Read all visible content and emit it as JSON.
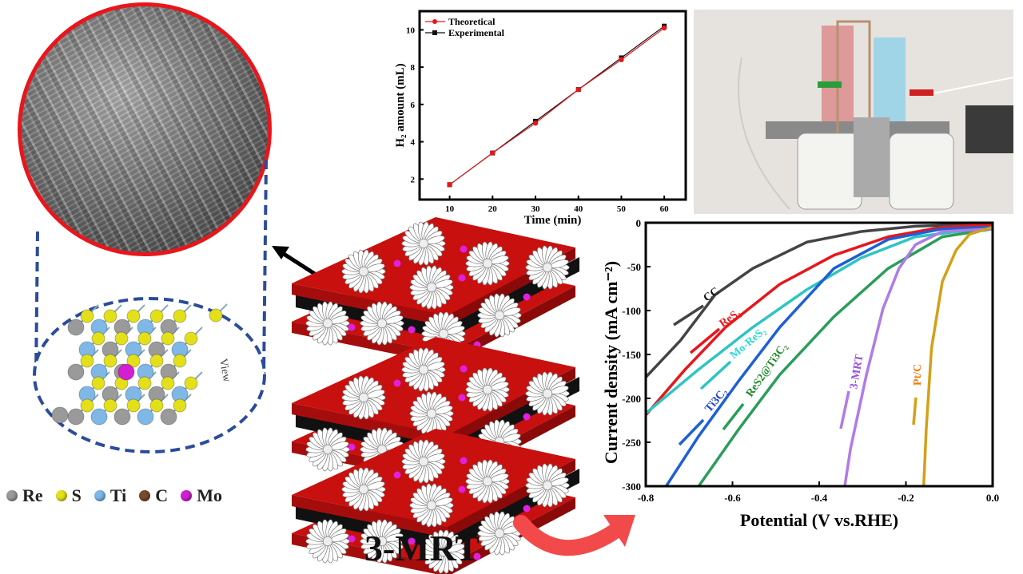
{
  "figure_title": "3-MRT",
  "structure": {
    "view_label": "View",
    "legend": [
      {
        "label": "Re",
        "color": "#9a9a9a"
      },
      {
        "label": "S",
        "color": "#e3e01a"
      },
      {
        "label": "Ti",
        "color": "#7fb8e6"
      },
      {
        "label": "C",
        "color": "#7a4a2a"
      },
      {
        "label": "Mo",
        "color": "#d21fd2"
      }
    ]
  },
  "chart_data": [
    {
      "type": "line",
      "title": "",
      "xlabel": "Time (min)",
      "ylabel": "H₂ amount (mL)",
      "xlim": [
        3,
        65
      ],
      "ylim": [
        0.9,
        11
      ],
      "xticks": [
        10,
        20,
        30,
        40,
        50,
        60
      ],
      "yticks": [
        2,
        4,
        6,
        8,
        10
      ],
      "legend_position": "top-left",
      "x": [
        10,
        20,
        30,
        40,
        50,
        60
      ],
      "series": [
        {
          "name": "Theoretical",
          "color": "#e8161b",
          "marker": "circle",
          "values": [
            1.7,
            3.4,
            5.0,
            6.8,
            8.4,
            10.1
          ]
        },
        {
          "name": "Experimental",
          "color": "#111111",
          "marker": "square",
          "values": [
            1.7,
            3.4,
            5.1,
            6.8,
            8.5,
            10.2
          ]
        }
      ]
    },
    {
      "type": "line",
      "title": "",
      "xlabel": "Potential (V vs.RHE)",
      "ylabel": "Current density (mA cm⁻²)",
      "xlim": [
        -0.8,
        0.0
      ],
      "ylim": [
        -300,
        0
      ],
      "xticks": [
        "-0.8",
        "-0.6",
        "-0.4",
        "-0.2",
        "0.0"
      ],
      "yticks": [
        "0",
        "-50",
        "-100",
        "-150",
        "-200",
        "-250",
        "-300"
      ],
      "series": [
        {
          "name": "CC",
          "color": "#444444",
          "label_color": "#111111",
          "points": [
            [
              -0.8,
              -176
            ],
            [
              -0.72,
              -134
            ],
            [
              -0.64,
              -82
            ],
            [
              -0.553,
              -52
            ],
            [
              -0.428,
              -22
            ],
            [
              -0.303,
              -10
            ],
            [
              -0.178,
              -4
            ],
            [
              0,
              -1
            ]
          ]
        },
        {
          "name": "ReS₂",
          "color": "#e8161b",
          "label_color": "#e8161b",
          "points": [
            [
              -0.8,
              -219
            ],
            [
              -0.709,
              -167
            ],
            [
              -0.616,
              -119
            ],
            [
              -0.491,
              -70
            ],
            [
              -0.366,
              -37
            ],
            [
              -0.241,
              -16
            ],
            [
              -0.116,
              -5
            ],
            [
              0,
              -2
            ]
          ]
        },
        {
          "name": "Mo-ReS₂",
          "color": "#2ec4c4",
          "label_color": "#2fd8d8",
          "points": [
            [
              -0.8,
              -217
            ],
            [
              -0.678,
              -167
            ],
            [
              -0.553,
              -119
            ],
            [
              -0.428,
              -76
            ],
            [
              -0.303,
              -40
            ],
            [
              -0.178,
              -16
            ],
            [
              0,
              -5
            ]
          ]
        },
        {
          "name": "Ti3C₂",
          "color": "#1f5fd6",
          "label_color": "#1d3fd0",
          "points": [
            [
              -0.753,
              -300
            ],
            [
              -0.678,
              -243
            ],
            [
              -0.584,
              -179
            ],
            [
              -0.491,
              -119
            ],
            [
              -0.366,
              -52
            ],
            [
              -0.241,
              -19
            ],
            [
              -0.116,
              -7
            ],
            [
              0,
              -5
            ]
          ]
        },
        {
          "name": "ReS2@Ti3C₂",
          "color": "#2a9d5a",
          "label_color": "#1f8a2a",
          "points": [
            [
              -0.678,
              -300
            ],
            [
              -0.584,
              -234
            ],
            [
              -0.491,
              -173
            ],
            [
              -0.366,
              -107
            ],
            [
              -0.241,
              -52
            ],
            [
              -0.116,
              -16
            ],
            [
              0,
              -7
            ]
          ]
        },
        {
          "name": "3-MRT",
          "color": "#b07be6",
          "label_color": "#9a4fe0",
          "points": [
            [
              -0.341,
              -300
            ],
            [
              -0.328,
              -258
            ],
            [
              -0.291,
              -173
            ],
            [
              -0.253,
              -98
            ],
            [
              -0.216,
              -52
            ],
            [
              -0.178,
              -25
            ],
            [
              -0.116,
              -10
            ],
            [
              0,
              -7
            ]
          ]
        },
        {
          "name": "Pt/C",
          "color": "#d4a017",
          "label_color": "#f07a10",
          "points": [
            [
              -0.159,
              -300
            ],
            [
              -0.153,
              -234
            ],
            [
              -0.141,
              -143
            ],
            [
              -0.116,
              -67
            ],
            [
              -0.084,
              -31
            ],
            [
              -0.053,
              -13
            ],
            [
              0,
              -5
            ]
          ]
        }
      ]
    }
  ]
}
